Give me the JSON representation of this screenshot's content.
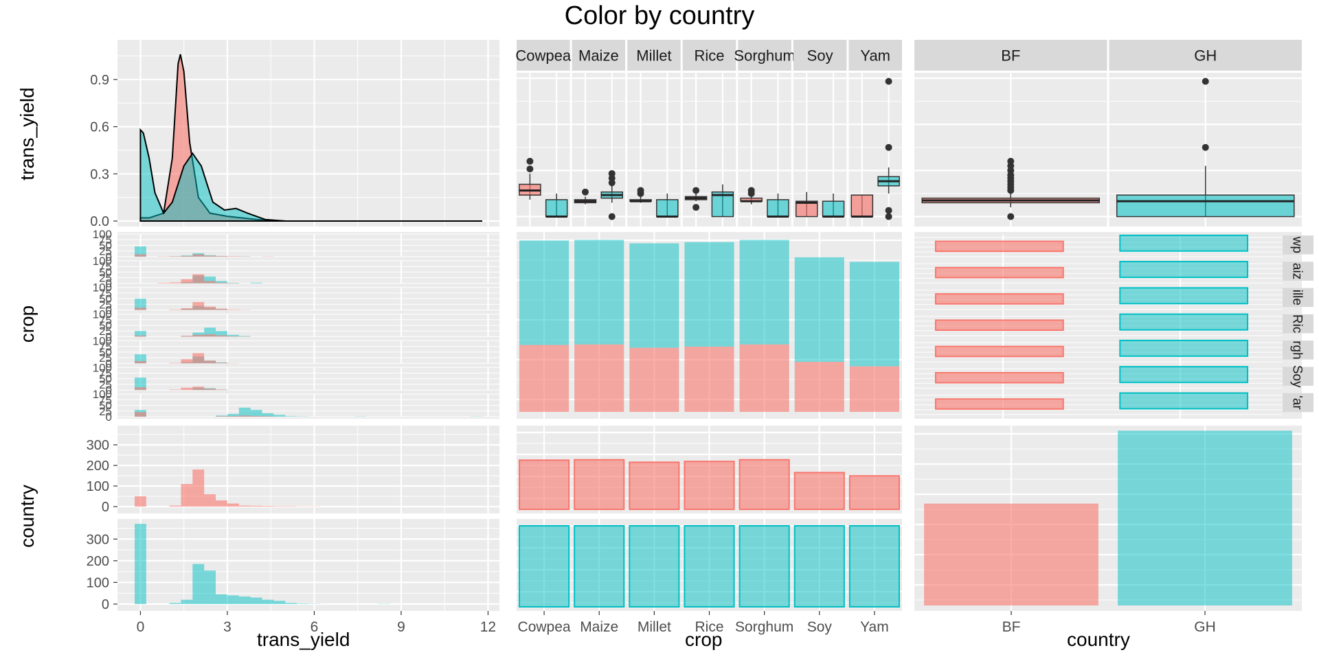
{
  "title": "Color by country",
  "colors": {
    "BF": "#F8766D",
    "GH": "#00BFC4",
    "panel_bg": "#EBEBEB",
    "strip_bg": "#D9D9D9"
  },
  "x_titles": {
    "trans_yield": "trans_yield",
    "crop": "crop",
    "country": "country"
  },
  "row_titles": {
    "trans_yield": "trans_yield",
    "crop": "crop",
    "country": "country"
  },
  "chart_data": [
    {
      "type": "area",
      "panel": "trans_yield density by country",
      "xticks": [
        0,
        3,
        6,
        9,
        12
      ],
      "yticks": [
        0.0,
        0.3,
        0.6,
        0.9
      ],
      "ytick_labels": [
        "0.0",
        "0.3",
        "0.6",
        "0.9"
      ],
      "xlim": [
        -0.2,
        11.8
      ],
      "ylim": [
        0,
        1.1
      ],
      "series": [
        {
          "name": "BF",
          "values": [
            [
              0,
              0.02
            ],
            [
              0.3,
              0.02
            ],
            [
              0.8,
              0.05
            ],
            [
              1.1,
              0.4
            ],
            [
              1.3,
              1.0
            ],
            [
              1.38,
              1.06
            ],
            [
              1.5,
              0.95
            ],
            [
              1.7,
              0.5
            ],
            [
              2.0,
              0.15
            ],
            [
              2.4,
              0.05
            ],
            [
              3.0,
              0.03
            ],
            [
              4.0,
              0.01
            ],
            [
              5.0,
              0
            ],
            [
              11.8,
              0
            ]
          ]
        },
        {
          "name": "GH",
          "values": [
            [
              0,
              0.58
            ],
            [
              0.1,
              0.56
            ],
            [
              0.3,
              0.4
            ],
            [
              0.5,
              0.18
            ],
            [
              0.8,
              0.05
            ],
            [
              1.1,
              0.12
            ],
            [
              1.5,
              0.35
            ],
            [
              1.8,
              0.43
            ],
            [
              2.1,
              0.35
            ],
            [
              2.5,
              0.12
            ],
            [
              2.9,
              0.07
            ],
            [
              3.3,
              0.08
            ],
            [
              3.7,
              0.05
            ],
            [
              4.3,
              0.01
            ],
            [
              5,
              0
            ],
            [
              11.8,
              0
            ]
          ]
        }
      ]
    },
    {
      "type": "box",
      "panel": "trans_yield by crop and country",
      "strips": [
        "Cowpea",
        "Maize",
        "Millet",
        "Rice",
        "Sorghum",
        "Soy",
        "Yam"
      ],
      "yticks": [
        0.0,
        0.3,
        0.6,
        0.9
      ],
      "ylim": [
        -0.02,
        0.9
      ],
      "boxes": [
        [
          {
            "name": "BF",
            "min": 0.11,
            "q1": 0.14,
            "med": 0.17,
            "q3": 0.21,
            "max": 0.28,
            "out": [
              0.31,
              0.36
            ]
          },
          {
            "name": "GH",
            "min": 0,
            "q1": 0,
            "med": 0,
            "q3": 0.11,
            "max": 0.15,
            "out": []
          }
        ],
        [
          {
            "name": "BF",
            "min": 0.08,
            "q1": 0.09,
            "med": 0.1,
            "q3": 0.11,
            "max": 0.13,
            "out": [
              0.16
            ]
          },
          {
            "name": "GH",
            "min": 0.09,
            "q1": 0.12,
            "med": 0.14,
            "q3": 0.16,
            "max": 0.2,
            "out": [
              0,
              0.22,
              0.25,
              0.28
            ]
          }
        ],
        [
          {
            "name": "BF",
            "min": 0.09,
            "q1": 0.1,
            "med": 0.1,
            "q3": 0.11,
            "max": 0.13,
            "out": [
              0.15,
              0.17
            ]
          },
          {
            "name": "GH",
            "min": 0,
            "q1": 0,
            "med": 0,
            "q3": 0.11,
            "max": 0.15,
            "out": []
          }
        ],
        [
          {
            "name": "BF",
            "min": 0.1,
            "q1": 0.11,
            "med": 0.12,
            "q3": 0.13,
            "max": 0.15,
            "out": [
              0.06,
              0.17
            ]
          },
          {
            "name": "GH",
            "min": 0,
            "q1": 0,
            "med": 0.14,
            "q3": 0.16,
            "max": 0.21,
            "out": []
          }
        ],
        [
          {
            "name": "BF",
            "min": 0.08,
            "q1": 0.1,
            "med": 0.1,
            "q3": 0.12,
            "max": 0.14,
            "out": [
              0.15,
              0.17
            ]
          },
          {
            "name": "GH",
            "min": 0,
            "q1": 0,
            "med": 0,
            "q3": 0.11,
            "max": 0.15,
            "out": []
          }
        ],
        [
          {
            "name": "BF",
            "min": 0,
            "q1": 0,
            "med": 0.09,
            "q3": 0.1,
            "max": 0.16,
            "out": []
          },
          {
            "name": "GH",
            "min": 0,
            "q1": 0,
            "med": 0,
            "q3": 0.1,
            "max": 0.15,
            "out": []
          }
        ],
        [
          {
            "name": "BF",
            "min": 0,
            "q1": 0,
            "med": 0,
            "q3": 0.14,
            "max": 0.14,
            "out": []
          },
          {
            "name": "GH",
            "min": 0.15,
            "q1": 0.2,
            "med": 0.23,
            "q3": 0.26,
            "max": 0.32,
            "out": [
              0,
              0.04,
              0.45,
              0.88
            ]
          }
        ]
      ]
    },
    {
      "type": "box",
      "panel": "trans_yield by country",
      "strips": [
        "BF",
        "GH"
      ],
      "ylim": [
        -0.02,
        0.9
      ],
      "boxes": [
        {
          "name": "BF",
          "min": 0.06,
          "q1": 0.09,
          "med": 0.105,
          "q3": 0.12,
          "max": 0.15,
          "out": [
            0,
            0.17,
            0.19,
            0.21,
            0.23,
            0.25,
            0.27,
            0.3,
            0.33,
            0.36
          ]
        },
        {
          "name": "GH",
          "min": 0,
          "q1": 0,
          "med": 0.1,
          "q3": 0.14,
          "max": 0.33,
          "out": [
            0.45,
            0.88
          ]
        }
      ]
    },
    {
      "type": "bar",
      "panel": "crop counts stacked by country",
      "categories": [
        "Cowpea",
        "Maize",
        "Millet",
        "Rice",
        "Sorghum",
        "Soy",
        "Yam"
      ],
      "ylim": [
        0,
        640
      ],
      "series": [
        {
          "name": "BF",
          "values": [
            238,
            240,
            228,
            232,
            240,
            178,
            162
          ]
        },
        {
          "name": "GH",
          "values": [
            372,
            372,
            372,
            372,
            372,
            372,
            372
          ]
        }
      ]
    },
    {
      "type": "bar",
      "panel": "country bars faceted by crop",
      "strips": [
        "Cowpea",
        "Maize",
        "Millet",
        "Rice",
        "Sorghum",
        "Soy",
        "Yam"
      ],
      "strip_labels": [
        "wp",
        "aiz",
        "ille",
        "Ric",
        "rgh",
        "Soy",
        "'ar"
      ],
      "categories": [
        "BF",
        "GH"
      ]
    },
    {
      "type": "bar",
      "panel": "country counts",
      "categories": [
        "BF",
        "GH"
      ],
      "xticks": [
        "BF",
        "GH"
      ],
      "values": [
        1518,
        2604
      ],
      "ylim": [
        0,
        2680
      ]
    },
    {
      "type": "bar",
      "panel": "trans_yield histograms faceted by crop",
      "yticks": [
        0,
        25,
        50,
        75,
        100
      ],
      "ytick_labels": [
        "0",
        "25",
        "50",
        "75",
        "100"
      ],
      "bin_width": 0.4,
      "bin_start": -0.2,
      "ylim": [
        0,
        100
      ],
      "facets": [
        {
          "crop": "Cowpea",
          "BF": [
            10,
            0,
            1,
            2,
            3,
            10,
            4,
            3,
            2,
            1,
            0,
            1
          ],
          "GH": [
            45,
            0,
            0,
            1,
            5,
            15,
            6,
            2,
            0,
            1
          ]
        },
        {
          "crop": "Maize",
          "BF": [
            0,
            0,
            2,
            4,
            18,
            40,
            10,
            3,
            1
          ],
          "GH": [
            0,
            0,
            0,
            0,
            5,
            35,
            30,
            10,
            2,
            0,
            3
          ]
        },
        {
          "crop": "Millet",
          "BF": [
            10,
            0,
            0,
            2,
            8,
            35,
            15,
            6,
            2,
            1
          ],
          "GH": [
            50,
            0,
            0,
            0,
            5,
            18,
            10,
            4
          ]
        },
        {
          "crop": "Rice",
          "BF": [
            5,
            0,
            0,
            0,
            4,
            8,
            10,
            6,
            2,
            1
          ],
          "GH": [
            25,
            0,
            0,
            0,
            3,
            18,
            40,
            25,
            8,
            3
          ]
        },
        {
          "crop": "Sorghum",
          "BF": [
            10,
            0,
            0,
            2,
            18,
            45,
            12,
            3,
            1
          ],
          "GH": [
            40,
            0,
            0,
            0,
            5,
            30,
            12,
            4
          ]
        },
        {
          "crop": "Soy",
          "BF": [
            12,
            0,
            0,
            2,
            10,
            15,
            6,
            2
          ],
          "GH": [
            55,
            0,
            0,
            0,
            0,
            10,
            8,
            2
          ]
        },
        {
          "crop": "Yam",
          "BF": [
            20,
            0,
            0,
            0,
            0,
            0,
            0,
            2,
            3,
            5,
            3,
            2
          ],
          "GH": [
            30,
            0,
            0,
            0,
            0,
            0,
            0,
            5,
            12,
            40,
            30,
            15,
            8,
            2,
            1,
            0,
            0,
            0,
            0,
            1,
            0,
            0,
            0,
            0,
            0,
            0,
            0,
            0,
            0,
            1
          ]
        }
      ]
    },
    {
      "type": "bar",
      "panel": "trans_yield histogram faceted by country",
      "xticks": [
        0,
        3,
        6,
        9,
        12
      ],
      "yticks": [
        0,
        100,
        200,
        300
      ],
      "ytick_labels": [
        "0",
        "100",
        "200",
        "300"
      ],
      "bin_width": 0.4,
      "bin_start": -0.2,
      "ylim": [
        0,
        380
      ],
      "facets": [
        {
          "country": "BF",
          "values": [
            50,
            0,
            0,
            5,
            110,
            180,
            60,
            30,
            15,
            5,
            4,
            3,
            2,
            2,
            1,
            1
          ]
        },
        {
          "country": "GH",
          "values": [
            370,
            0,
            0,
            5,
            20,
            185,
            155,
            45,
            40,
            35,
            30,
            20,
            15,
            5,
            2,
            1,
            0,
            0,
            0,
            0,
            0,
            1,
            0,
            0,
            0,
            0,
            0,
            0,
            0,
            0,
            0,
            0,
            0,
            0,
            0,
            1
          ]
        }
      ]
    }
  ]
}
